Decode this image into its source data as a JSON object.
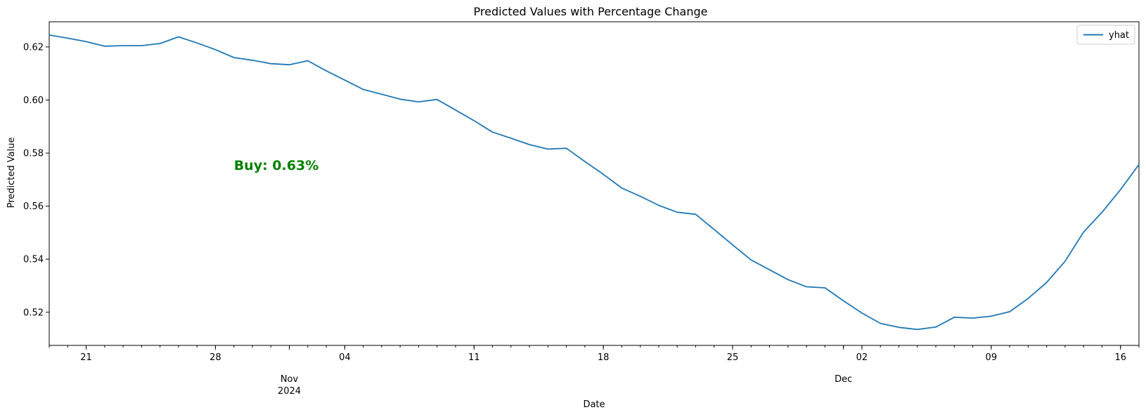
{
  "chart_data": {
    "type": "line",
    "title": "Predicted Values with Percentage Change",
    "xlabel": "Date",
    "ylabel": "Predicted Value",
    "x_start": "2024-10-19",
    "x_end": "2024-12-17",
    "ylim": [
      0.5075,
      0.6295
    ],
    "yticks": [
      0.52,
      0.54,
      0.56,
      0.58,
      0.6,
      0.62
    ],
    "ytick_labels": [
      "0.52",
      "0.54",
      "0.56",
      "0.58",
      "0.60",
      "0.62"
    ],
    "xticks": [
      {
        "date": "2024-10-21",
        "label": "21"
      },
      {
        "date": "2024-10-28",
        "label": "28"
      },
      {
        "date": "2024-11-04",
        "label": "04"
      },
      {
        "date": "2024-11-11",
        "label": "11"
      },
      {
        "date": "2024-11-18",
        "label": "18"
      },
      {
        "date": "2024-11-25",
        "label": "25"
      },
      {
        "date": "2024-12-02",
        "label": "02"
      },
      {
        "date": "2024-12-09",
        "label": "09"
      },
      {
        "date": "2024-12-16",
        "label": "16"
      }
    ],
    "month_ticks": [
      {
        "date": "2024-11-01",
        "label": "Nov",
        "sublabel": "2024"
      },
      {
        "date": "2024-12-01",
        "label": "Dec",
        "sublabel": ""
      }
    ],
    "grid": false,
    "legend_position": "top-right",
    "series": [
      {
        "name": "yhat",
        "color": "#1f77b4",
        "x": [
          "2024-10-19",
          "2024-10-20",
          "2024-10-21",
          "2024-10-22",
          "2024-10-23",
          "2024-10-24",
          "2024-10-25",
          "2024-10-26",
          "2024-10-27",
          "2024-10-28",
          "2024-10-29",
          "2024-10-30",
          "2024-10-31",
          "2024-11-01",
          "2024-11-02",
          "2024-11-03",
          "2024-11-04",
          "2024-11-05",
          "2024-11-06",
          "2024-11-07",
          "2024-11-08",
          "2024-11-09",
          "2024-11-10",
          "2024-11-11",
          "2024-11-12",
          "2024-11-13",
          "2024-11-14",
          "2024-11-15",
          "2024-11-16",
          "2024-11-17",
          "2024-11-18",
          "2024-11-19",
          "2024-11-20",
          "2024-11-21",
          "2024-11-22",
          "2024-11-23",
          "2024-11-24",
          "2024-11-25",
          "2024-11-26",
          "2024-11-27",
          "2024-11-28",
          "2024-11-29",
          "2024-11-30",
          "2024-12-01",
          "2024-12-02",
          "2024-12-03",
          "2024-12-04",
          "2024-12-05",
          "2024-12-06",
          "2024-12-07",
          "2024-12-08",
          "2024-12-09",
          "2024-12-10",
          "2024-12-11",
          "2024-12-12",
          "2024-12-13",
          "2024-12-14",
          "2024-12-15",
          "2024-12-16",
          "2024-12-17"
        ],
        "values": [
          0.6245,
          0.6233,
          0.622,
          0.6203,
          0.6205,
          0.6205,
          0.6213,
          0.6238,
          0.6215,
          0.619,
          0.616,
          0.615,
          0.6137,
          0.6133,
          0.6148,
          0.611,
          0.6075,
          0.604,
          0.6022,
          0.6003,
          0.5993,
          0.6002,
          0.5962,
          0.5922,
          0.5879,
          0.5856,
          0.5832,
          0.5815,
          0.5818,
          0.5768,
          0.572,
          0.5668,
          0.5637,
          0.5603,
          0.5577,
          0.5569,
          0.5512,
          0.5454,
          0.5397,
          0.536,
          0.5323,
          0.5296,
          0.5292,
          0.5243,
          0.5197,
          0.5158,
          0.5143,
          0.5135,
          0.5144,
          0.5181,
          0.5178,
          0.5185,
          0.5202,
          0.5252,
          0.5312,
          0.5392,
          0.5502,
          0.5577,
          0.5662,
          0.5757
        ]
      }
    ],
    "annotation": {
      "text": "Buy: 0.63%",
      "color": "#008000",
      "x": "2024-10-29",
      "y": 0.5755
    }
  }
}
